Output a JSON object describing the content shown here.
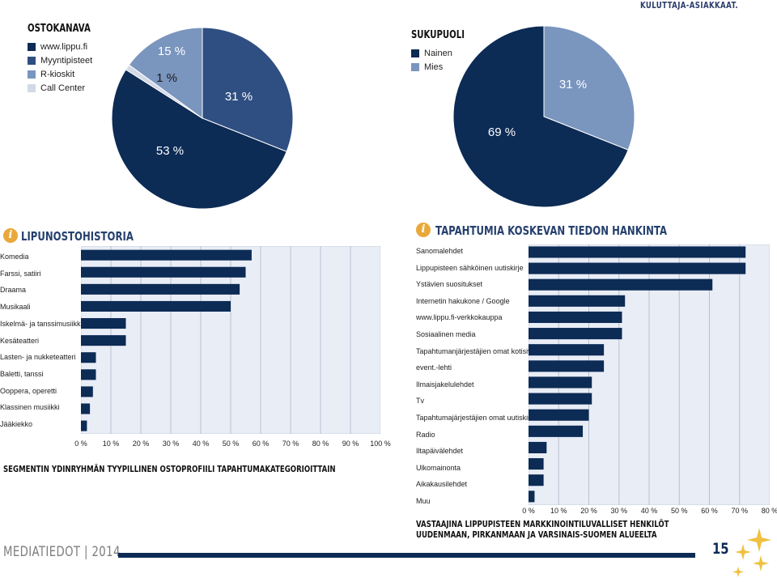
{
  "header": {
    "tag": "KULUTTAJA-ASIAKKAAT."
  },
  "footer": {
    "brand": "MEDIATIEDOT | 2014",
    "page_number": "15"
  },
  "colors": {
    "navy": "#0c2b55",
    "steel": "#5b7bab",
    "steel2": "#7a95be",
    "pale": "#d3d9e6",
    "chart_bg": "#e9edf6",
    "accent": "#e8a93a"
  },
  "chart_data": [
    {
      "id": "ostokanava",
      "type": "pie",
      "title": "OSTOKANAVA",
      "labels": [
        "www.lippu.fi",
        "Myyntipisteet",
        "R-kioskit",
        "Call Center"
      ],
      "values": [
        53,
        31,
        15,
        1
      ],
      "value_labels": [
        "53 %",
        "31 %",
        "15 %",
        "1 %"
      ],
      "legend": [
        "www.lippu.fi",
        "Myyntipisteet",
        "R-kioskit",
        "Call Center"
      ]
    },
    {
      "id": "sukupuoli",
      "type": "pie",
      "title": "SUKUPUOLI",
      "labels": [
        "Nainen",
        "Mies"
      ],
      "values": [
        69,
        31
      ],
      "value_labels": [
        "69 %",
        "31 %"
      ],
      "legend": [
        "Nainen",
        "Mies"
      ]
    },
    {
      "id": "lipunostohistoria",
      "type": "bar",
      "orientation": "horizontal",
      "title": "LIPUNOSTOHISTORIA",
      "categories": [
        "Komedia",
        "Farssi, satiiri",
        "Draama",
        "Musikaali",
        "Iskelmä- ja tanssimusiikki",
        "Kesäteatteri",
        "Lasten- ja nukketeatteri",
        "Baletti, tanssi",
        "Ooppera, operetti",
        "Klassinen musiikki",
        "Jääkiekko"
      ],
      "values": [
        57,
        55,
        53,
        50,
        15,
        15,
        5,
        5,
        4,
        3,
        2
      ],
      "xlim": [
        0,
        100
      ],
      "xticks": [
        "0 %",
        "10 %",
        "20 %",
        "30 %",
        "40 %",
        "50 %",
        "60 %",
        "70 %",
        "80 %",
        "90 %",
        "100 %"
      ],
      "caption": "SEGMENTIN YDINRYHMÄN TYYPILLINEN OSTOPROFIILI TAPAHTUMAKATEGORIOITTAIN"
    },
    {
      "id": "tiedon_hankinta",
      "type": "bar",
      "orientation": "horizontal",
      "title": "TAPAHTUMIA KOSKEVAN TIEDON HANKINTA",
      "categories": [
        "Sanomalehdet",
        "Lippupisteen sähköinen uutiskirje",
        "Ystävien suositukset",
        "Internetin hakukone / Google",
        "www.lippu.fi-verkkokauppa",
        "Sosiaalinen media",
        "Tapahtumanjärjestäjien omat kotisivut",
        "event.-lehti",
        "Ilmaisjakelulehdet",
        "Tv",
        "Tapahtumajärjestäjien omat uutiskirjeet",
        "Radio",
        "Iltapäivälehdet",
        "Ulkomainonta",
        "Aikakausilehdet",
        "Muu"
      ],
      "values": [
        72,
        72,
        61,
        32,
        31,
        31,
        25,
        25,
        21,
        21,
        20,
        18,
        6,
        5,
        5,
        2
      ],
      "xlim": [
        0,
        80
      ],
      "xticks": [
        "0 %",
        "10 %",
        "20 %",
        "30 %",
        "40 %",
        "50 %",
        "60 %",
        "70 %",
        "80 %"
      ],
      "caption": "VASTAAJINA LIPPUPISTEEN MARKKINOINTILUVALLISET HENKILÖT UUDENMAAN, PIRKANMAAN JA VARSINAIS-SUOMEN ALUEELTA"
    }
  ]
}
